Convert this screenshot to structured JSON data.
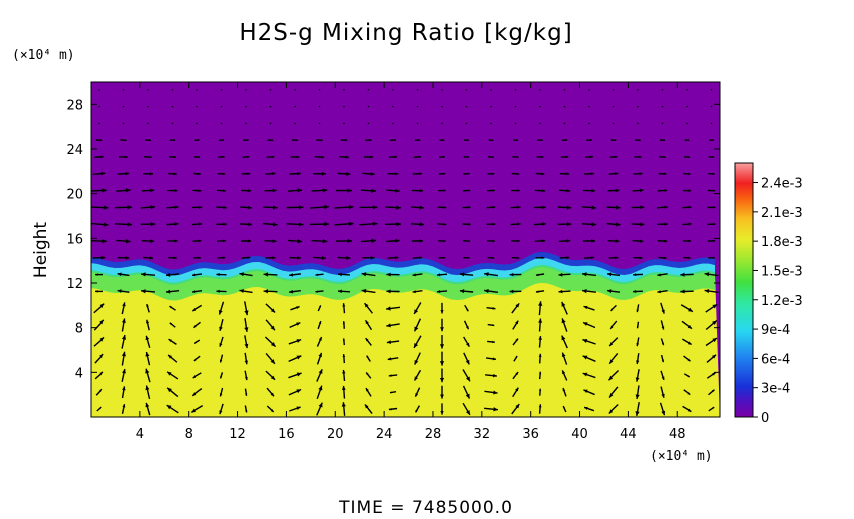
{
  "chart_data": {
    "type": "heatmap",
    "title": "H2S-g Mixing Ratio [kg/kg]",
    "ylabel": "Height",
    "x_unit": "(×10⁴ m)",
    "y_unit": "(×10⁴ m)",
    "footer": "TIME = 7485000.0",
    "xlim": [
      0,
      51.5
    ],
    "ylim": [
      0,
      30
    ],
    "x_ticks": [
      4,
      8,
      12,
      16,
      20,
      24,
      28,
      32,
      36,
      40,
      44,
      48
    ],
    "y_ticks": [
      4,
      8,
      12,
      16,
      20,
      24,
      28
    ],
    "colorbar": {
      "range": [
        0,
        0.0026
      ],
      "ticks": [
        "0",
        "3e-4",
        "6e-4",
        "9e-4",
        "1.2e-3",
        "1.5e-3",
        "1.8e-3",
        "2.1e-3",
        "2.4e-3"
      ],
      "tick_values": [
        0,
        0.0003,
        0.0006,
        0.0009,
        0.0012,
        0.0015,
        0.0018,
        0.0021,
        0.0024
      ]
    },
    "field": {
      "lower_layer_value": 0.0017,
      "upper_layer_value": 0.0,
      "interface_height": 13
    },
    "vectors": "wind velocity field (arrows), no reference scale shown"
  },
  "colors": {
    "upper": "#7b00a8",
    "lower": "#e8ec2a",
    "band_green": "#40e060",
    "band_cyan": "#40d8f0",
    "band_blue": "#2040d0",
    "arrow": "#000000"
  }
}
